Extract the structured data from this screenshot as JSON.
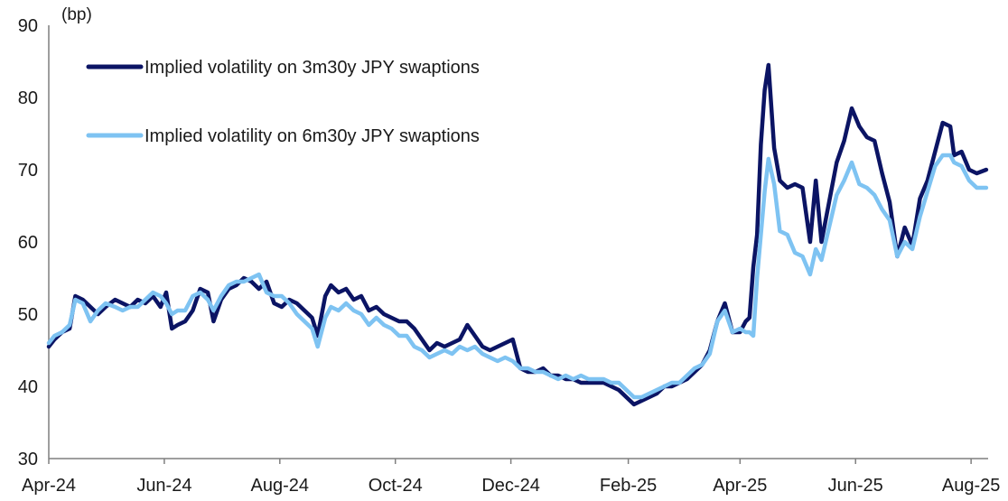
{
  "chart_data": {
    "type": "line",
    "ylabel": "(bp)",
    "ylim": [
      30,
      90
    ],
    "yticks": [
      30,
      40,
      50,
      60,
      70,
      80,
      90
    ],
    "xlim": [
      "2024-04-01",
      "2025-08-10"
    ],
    "xticks": [
      {
        "label": "Apr-24",
        "date": "2024-04-01"
      },
      {
        "label": "Jun-24",
        "date": "2024-06-01"
      },
      {
        "label": "Aug-24",
        "date": "2024-08-01"
      },
      {
        "label": "Oct-24",
        "date": "2024-10-01"
      },
      {
        "label": "Dec-24",
        "date": "2024-12-01"
      },
      {
        "label": "Feb-25",
        "date": "2025-02-01"
      },
      {
        "label": "Apr-25",
        "date": "2025-04-01"
      },
      {
        "label": "Jun-25",
        "date": "2025-06-01"
      },
      {
        "label": "Aug-25",
        "date": "2025-08-01"
      }
    ],
    "grid": false,
    "legend_position": "top-left",
    "series": [
      {
        "name": "Implied volatility on 3m30y JPY swaptions",
        "color": "#0b1464",
        "points": [
          [
            "2024-04-01",
            45.5
          ],
          [
            "2024-04-04",
            46.5
          ],
          [
            "2024-04-08",
            47.5
          ],
          [
            "2024-04-12",
            48.0
          ],
          [
            "2024-04-15",
            52.5
          ],
          [
            "2024-04-19",
            52.0
          ],
          [
            "2024-04-23",
            51.0
          ],
          [
            "2024-04-27",
            50.0
          ],
          [
            "2024-05-01",
            51.0
          ],
          [
            "2024-05-06",
            52.0
          ],
          [
            "2024-05-10",
            51.5
          ],
          [
            "2024-05-14",
            51.0
          ],
          [
            "2024-05-18",
            52.0
          ],
          [
            "2024-05-22",
            51.5
          ],
          [
            "2024-05-26",
            52.5
          ],
          [
            "2024-05-30",
            51.0
          ],
          [
            "2024-06-02",
            53.0
          ],
          [
            "2024-06-05",
            48.0
          ],
          [
            "2024-06-08",
            48.5
          ],
          [
            "2024-06-12",
            49.0
          ],
          [
            "2024-06-16",
            50.5
          ],
          [
            "2024-06-20",
            53.5
          ],
          [
            "2024-06-24",
            53.0
          ],
          [
            "2024-06-27",
            49.0
          ],
          [
            "2024-07-01",
            52.0
          ],
          [
            "2024-07-05",
            53.5
          ],
          [
            "2024-07-09",
            54.0
          ],
          [
            "2024-07-13",
            55.0
          ],
          [
            "2024-07-17",
            54.5
          ],
          [
            "2024-07-21",
            53.5
          ],
          [
            "2024-07-25",
            54.5
          ],
          [
            "2024-07-29",
            51.5
          ],
          [
            "2024-08-02",
            51.0
          ],
          [
            "2024-08-06",
            52.0
          ],
          [
            "2024-08-10",
            51.5
          ],
          [
            "2024-08-14",
            50.5
          ],
          [
            "2024-08-18",
            49.5
          ],
          [
            "2024-08-21",
            47.0
          ],
          [
            "2024-08-25",
            52.5
          ],
          [
            "2024-08-28",
            54.0
          ],
          [
            "2024-09-01",
            53.0
          ],
          [
            "2024-09-05",
            53.5
          ],
          [
            "2024-09-09",
            52.0
          ],
          [
            "2024-09-13",
            52.5
          ],
          [
            "2024-09-17",
            50.5
          ],
          [
            "2024-09-21",
            51.0
          ],
          [
            "2024-09-25",
            50.0
          ],
          [
            "2024-09-29",
            49.5
          ],
          [
            "2024-10-03",
            49.0
          ],
          [
            "2024-10-07",
            49.0
          ],
          [
            "2024-10-11",
            48.0
          ],
          [
            "2024-10-15",
            46.5
          ],
          [
            "2024-10-19",
            45.0
          ],
          [
            "2024-10-23",
            46.0
          ],
          [
            "2024-10-27",
            45.5
          ],
          [
            "2024-10-31",
            46.0
          ],
          [
            "2024-11-04",
            46.5
          ],
          [
            "2024-11-08",
            48.5
          ],
          [
            "2024-11-12",
            47.0
          ],
          [
            "2024-11-16",
            45.5
          ],
          [
            "2024-11-20",
            45.0
          ],
          [
            "2024-11-24",
            45.5
          ],
          [
            "2024-11-28",
            46.0
          ],
          [
            "2024-12-02",
            46.5
          ],
          [
            "2024-12-06",
            42.5
          ],
          [
            "2024-12-10",
            42.0
          ],
          [
            "2024-12-14",
            42.0
          ],
          [
            "2024-12-18",
            42.5
          ],
          [
            "2024-12-22",
            41.5
          ],
          [
            "2024-12-26",
            41.5
          ],
          [
            "2024-12-30",
            41.0
          ],
          [
            "2025-01-03",
            41.0
          ],
          [
            "2025-01-07",
            40.5
          ],
          [
            "2025-01-11",
            40.5
          ],
          [
            "2025-01-15",
            40.5
          ],
          [
            "2025-01-19",
            40.5
          ],
          [
            "2025-01-23",
            40.0
          ],
          [
            "2025-01-27",
            39.5
          ],
          [
            "2025-01-31",
            38.5
          ],
          [
            "2025-02-04",
            37.5
          ],
          [
            "2025-02-08",
            38.0
          ],
          [
            "2025-02-12",
            38.5
          ],
          [
            "2025-02-16",
            39.0
          ],
          [
            "2025-02-20",
            40.0
          ],
          [
            "2025-02-24",
            40.0
          ],
          [
            "2025-02-28",
            40.5
          ],
          [
            "2025-03-04",
            41.0
          ],
          [
            "2025-03-08",
            42.0
          ],
          [
            "2025-03-12",
            43.0
          ],
          [
            "2025-03-16",
            45.0
          ],
          [
            "2025-03-20",
            49.0
          ],
          [
            "2025-03-24",
            51.5
          ],
          [
            "2025-03-28",
            47.5
          ],
          [
            "2025-04-01",
            47.5
          ],
          [
            "2025-04-04",
            49.0
          ],
          [
            "2025-04-06",
            49.5
          ],
          [
            "2025-04-08",
            56.5
          ],
          [
            "2025-04-10",
            61.0
          ],
          [
            "2025-04-12",
            73.5
          ],
          [
            "2025-04-14",
            81.0
          ],
          [
            "2025-04-16",
            84.5
          ],
          [
            "2025-04-19",
            73.0
          ],
          [
            "2025-04-22",
            68.5
          ],
          [
            "2025-04-26",
            67.5
          ],
          [
            "2025-04-30",
            68.0
          ],
          [
            "2025-05-04",
            67.5
          ],
          [
            "2025-05-08",
            60.0
          ],
          [
            "2025-05-11",
            68.5
          ],
          [
            "2025-05-14",
            60.0
          ],
          [
            "2025-05-18",
            65.5
          ],
          [
            "2025-05-22",
            71.0
          ],
          [
            "2025-05-26",
            74.0
          ],
          [
            "2025-05-30",
            78.5
          ],
          [
            "2025-06-03",
            76.0
          ],
          [
            "2025-06-07",
            74.5
          ],
          [
            "2025-06-11",
            74.0
          ],
          [
            "2025-06-15",
            69.5
          ],
          [
            "2025-06-19",
            65.5
          ],
          [
            "2025-06-23",
            58.0
          ],
          [
            "2025-06-27",
            62.0
          ],
          [
            "2025-07-01",
            59.5
          ],
          [
            "2025-07-05",
            66.0
          ],
          [
            "2025-07-09",
            68.5
          ],
          [
            "2025-07-13",
            72.5
          ],
          [
            "2025-07-17",
            76.5
          ],
          [
            "2025-07-21",
            76.0
          ],
          [
            "2025-07-23",
            72.0
          ],
          [
            "2025-07-27",
            72.5
          ],
          [
            "2025-07-31",
            70.0
          ],
          [
            "2025-08-04",
            69.5
          ],
          [
            "2025-08-09",
            70.0
          ]
        ]
      },
      {
        "name": "Implied volatility on 6m30y JPY swaptions",
        "color": "#7ec3f2",
        "points": [
          [
            "2024-04-01",
            46.0
          ],
          [
            "2024-04-04",
            47.0
          ],
          [
            "2024-04-08",
            47.5
          ],
          [
            "2024-04-12",
            48.5
          ],
          [
            "2024-04-15",
            52.0
          ],
          [
            "2024-04-19",
            51.5
          ],
          [
            "2024-04-23",
            49.0
          ],
          [
            "2024-04-27",
            50.5
          ],
          [
            "2024-05-01",
            51.5
          ],
          [
            "2024-05-06",
            51.0
          ],
          [
            "2024-05-10",
            50.5
          ],
          [
            "2024-05-14",
            51.0
          ],
          [
            "2024-05-18",
            51.0
          ],
          [
            "2024-05-22",
            52.0
          ],
          [
            "2024-05-26",
            53.0
          ],
          [
            "2024-05-30",
            52.5
          ],
          [
            "2024-06-02",
            51.5
          ],
          [
            "2024-06-05",
            50.0
          ],
          [
            "2024-06-08",
            50.5
          ],
          [
            "2024-06-12",
            50.5
          ],
          [
            "2024-06-16",
            52.5
          ],
          [
            "2024-06-20",
            53.0
          ],
          [
            "2024-06-24",
            52.0
          ],
          [
            "2024-06-27",
            50.5
          ],
          [
            "2024-07-01",
            52.5
          ],
          [
            "2024-07-05",
            54.0
          ],
          [
            "2024-07-09",
            54.5
          ],
          [
            "2024-07-13",
            54.5
          ],
          [
            "2024-07-17",
            55.0
          ],
          [
            "2024-07-21",
            55.5
          ],
          [
            "2024-07-25",
            53.0
          ],
          [
            "2024-07-29",
            52.5
          ],
          [
            "2024-08-02",
            52.5
          ],
          [
            "2024-08-06",
            51.5
          ],
          [
            "2024-08-10",
            50.0
          ],
          [
            "2024-08-14",
            49.0
          ],
          [
            "2024-08-18",
            48.0
          ],
          [
            "2024-08-21",
            45.5
          ],
          [
            "2024-08-25",
            49.5
          ],
          [
            "2024-08-28",
            51.0
          ],
          [
            "2024-09-01",
            50.5
          ],
          [
            "2024-09-05",
            51.5
          ],
          [
            "2024-09-09",
            50.5
          ],
          [
            "2024-09-13",
            50.0
          ],
          [
            "2024-09-17",
            48.5
          ],
          [
            "2024-09-21",
            49.5
          ],
          [
            "2024-09-25",
            48.5
          ],
          [
            "2024-09-29",
            48.0
          ],
          [
            "2024-10-03",
            47.0
          ],
          [
            "2024-10-07",
            47.0
          ],
          [
            "2024-10-11",
            45.5
          ],
          [
            "2024-10-15",
            45.0
          ],
          [
            "2024-10-19",
            44.0
          ],
          [
            "2024-10-23",
            44.5
          ],
          [
            "2024-10-27",
            45.0
          ],
          [
            "2024-10-31",
            44.5
          ],
          [
            "2024-11-04",
            45.5
          ],
          [
            "2024-11-08",
            45.0
          ],
          [
            "2024-11-12",
            45.5
          ],
          [
            "2024-11-16",
            44.5
          ],
          [
            "2024-11-20",
            44.0
          ],
          [
            "2024-11-24",
            43.5
          ],
          [
            "2024-11-28",
            44.0
          ],
          [
            "2024-12-02",
            43.5
          ],
          [
            "2024-12-06",
            42.5
          ],
          [
            "2024-12-10",
            42.5
          ],
          [
            "2024-12-14",
            42.0
          ],
          [
            "2024-12-18",
            42.0
          ],
          [
            "2024-12-22",
            41.5
          ],
          [
            "2024-12-26",
            41.0
          ],
          [
            "2024-12-30",
            41.5
          ],
          [
            "2025-01-03",
            41.0
          ],
          [
            "2025-01-07",
            41.5
          ],
          [
            "2025-01-11",
            41.0
          ],
          [
            "2025-01-15",
            41.0
          ],
          [
            "2025-01-19",
            41.0
          ],
          [
            "2025-01-23",
            40.5
          ],
          [
            "2025-01-27",
            40.5
          ],
          [
            "2025-01-31",
            39.5
          ],
          [
            "2025-02-04",
            38.5
          ],
          [
            "2025-02-08",
            38.5
          ],
          [
            "2025-02-12",
            39.0
          ],
          [
            "2025-02-16",
            39.5
          ],
          [
            "2025-02-20",
            40.0
          ],
          [
            "2025-02-24",
            40.5
          ],
          [
            "2025-02-28",
            40.5
          ],
          [
            "2025-03-04",
            41.5
          ],
          [
            "2025-03-08",
            42.5
          ],
          [
            "2025-03-12",
            43.0
          ],
          [
            "2025-03-16",
            44.5
          ],
          [
            "2025-03-20",
            49.0
          ],
          [
            "2025-03-24",
            50.5
          ],
          [
            "2025-03-28",
            47.5
          ],
          [
            "2025-04-01",
            48.0
          ],
          [
            "2025-04-04",
            47.5
          ],
          [
            "2025-04-06",
            47.5
          ],
          [
            "2025-04-08",
            47.0
          ],
          [
            "2025-04-10",
            55.0
          ],
          [
            "2025-04-12",
            61.0
          ],
          [
            "2025-04-14",
            67.0
          ],
          [
            "2025-04-16",
            71.5
          ],
          [
            "2025-04-19",
            68.0
          ],
          [
            "2025-04-22",
            61.5
          ],
          [
            "2025-04-26",
            61.0
          ],
          [
            "2025-04-30",
            58.5
          ],
          [
            "2025-05-04",
            58.0
          ],
          [
            "2025-05-08",
            55.5
          ],
          [
            "2025-05-11",
            59.0
          ],
          [
            "2025-05-14",
            57.5
          ],
          [
            "2025-05-18",
            62.0
          ],
          [
            "2025-05-22",
            66.5
          ],
          [
            "2025-05-26",
            68.5
          ],
          [
            "2025-05-30",
            71.0
          ],
          [
            "2025-06-03",
            68.0
          ],
          [
            "2025-06-07",
            67.5
          ],
          [
            "2025-06-11",
            66.5
          ],
          [
            "2025-06-15",
            64.5
          ],
          [
            "2025-06-19",
            63.0
          ],
          [
            "2025-06-23",
            58.0
          ],
          [
            "2025-06-27",
            60.0
          ],
          [
            "2025-07-01",
            59.0
          ],
          [
            "2025-07-05",
            63.5
          ],
          [
            "2025-07-09",
            67.0
          ],
          [
            "2025-07-13",
            70.5
          ],
          [
            "2025-07-17",
            72.0
          ],
          [
            "2025-07-21",
            72.0
          ],
          [
            "2025-07-23",
            71.0
          ],
          [
            "2025-07-27",
            70.5
          ],
          [
            "2025-07-31",
            68.5
          ],
          [
            "2025-08-04",
            67.5
          ],
          [
            "2025-08-09",
            67.5
          ]
        ]
      }
    ]
  }
}
